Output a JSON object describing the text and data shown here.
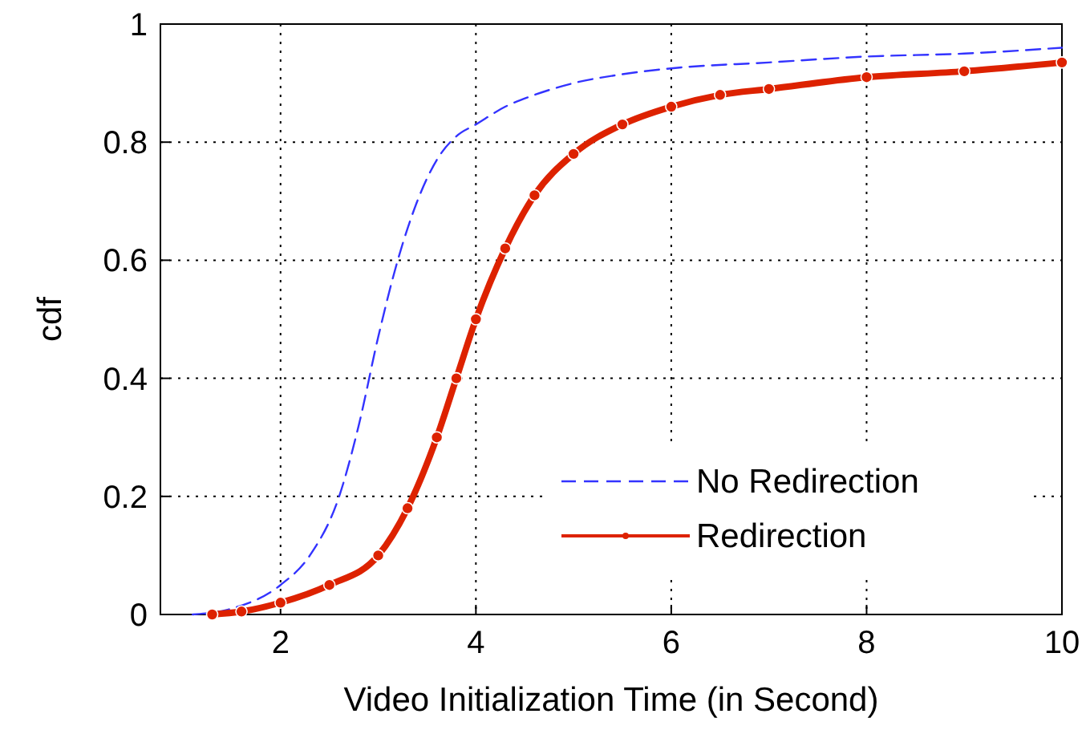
{
  "chart_data": {
    "type": "line",
    "xlabel": "Video Initialization Time (in Second)",
    "ylabel": "cdf",
    "xlim": [
      0.77,
      10
    ],
    "ylim": [
      0,
      1
    ],
    "xticks": [
      2,
      4,
      6,
      8,
      10
    ],
    "yticks": [
      0,
      0.2,
      0.4,
      0.6,
      0.8,
      1
    ],
    "grid": true,
    "legend": "bottom right",
    "series": [
      {
        "name": "No Redirection",
        "color": "#3333ff",
        "line_style": "dashed",
        "marker": "none",
        "x": [
          1.1,
          1.5,
          2,
          2.3,
          2.6,
          2.8,
          3,
          3.2,
          3.4,
          3.6,
          3.8,
          4,
          4.3,
          4.6,
          5,
          5.5,
          6,
          7,
          8,
          9,
          10
        ],
        "values": [
          0,
          0.01,
          0.05,
          0.1,
          0.2,
          0.32,
          0.47,
          0.6,
          0.7,
          0.77,
          0.81,
          0.83,
          0.86,
          0.88,
          0.9,
          0.915,
          0.925,
          0.935,
          0.945,
          0.95,
          0.96
        ]
      },
      {
        "name": "Redirection",
        "color": "#dd2200",
        "line_style": "solid",
        "marker": "circle",
        "x": [
          1.3,
          1.6,
          2,
          2.5,
          3,
          3.3,
          3.6,
          3.8,
          4,
          4.3,
          4.6,
          5,
          5.5,
          6,
          6.5,
          7,
          8,
          9,
          10
        ],
        "values": [
          0,
          0.005,
          0.02,
          0.05,
          0.1,
          0.18,
          0.3,
          0.4,
          0.5,
          0.62,
          0.71,
          0.78,
          0.83,
          0.86,
          0.88,
          0.89,
          0.91,
          0.92,
          0.935
        ]
      }
    ]
  }
}
